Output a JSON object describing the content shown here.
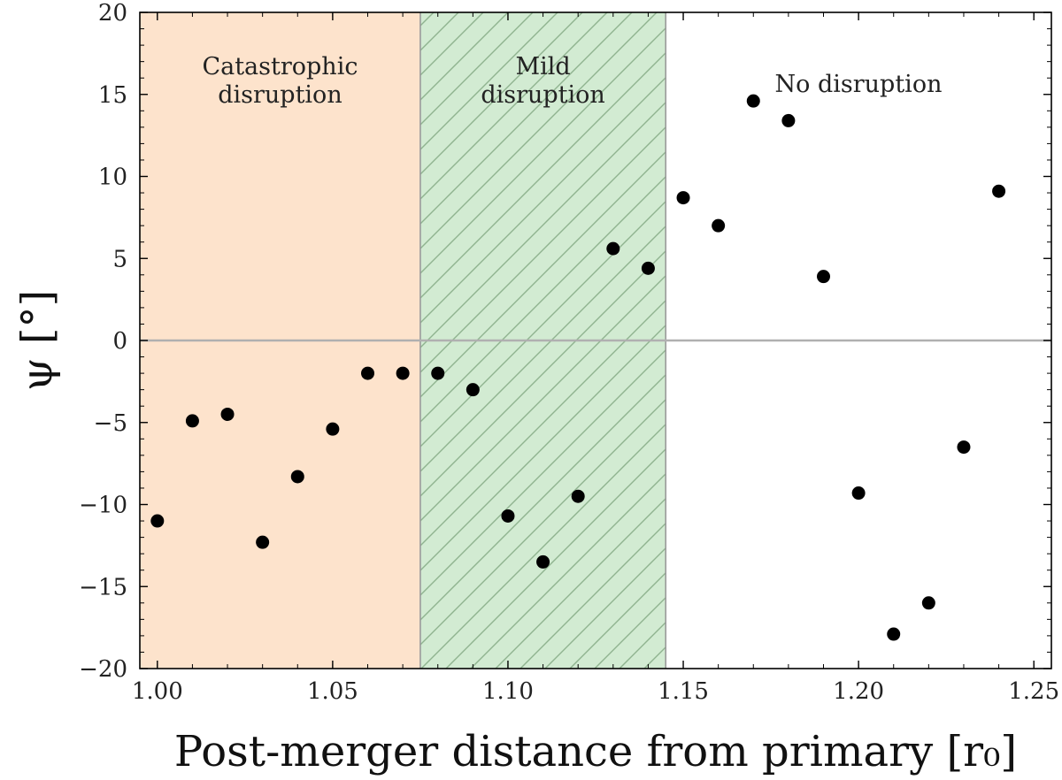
{
  "chart_data": {
    "type": "scatter",
    "title": "",
    "xlabel": "Post-merger distance from primary [r₀]",
    "ylabel": "ψ [°]",
    "xlim": [
      0.995,
      1.255
    ],
    "ylim": [
      -20,
      20
    ],
    "xticks": [
      1.0,
      1.05,
      1.1,
      1.15,
      1.2,
      1.25
    ],
    "xtick_labels": [
      "1.00",
      "1.05",
      "1.10",
      "1.15",
      "1.20",
      "1.25"
    ],
    "yticks": [
      -20,
      -15,
      -10,
      -5,
      0,
      5,
      10,
      15,
      20
    ],
    "ytick_labels": [
      "−20",
      "−15",
      "−10",
      "−5",
      "0",
      "5",
      "10",
      "15",
      "20"
    ],
    "grid": false,
    "reference_line": {
      "y": 0,
      "color": "#b0b0b0"
    },
    "regions": [
      {
        "label_lines": [
          "Catastrophic",
          "disruption"
        ],
        "x_start": 0.995,
        "x_end": 1.075,
        "color": "#fde3cc",
        "hatch": false
      },
      {
        "label_lines": [
          "Mild",
          "disruption"
        ],
        "x_start": 1.075,
        "x_end": 1.145,
        "color": "#d2ebd2",
        "hatch": true
      },
      {
        "label_lines": [
          "No disruption"
        ],
        "x_start": 1.145,
        "x_end": 1.255,
        "color": "#ffffff",
        "hatch": false
      }
    ],
    "marker_color": "#000000",
    "x": [
      1.0,
      1.01,
      1.02,
      1.03,
      1.04,
      1.05,
      1.06,
      1.07,
      1.08,
      1.09,
      1.1,
      1.11,
      1.12,
      1.13,
      1.14,
      1.15,
      1.16,
      1.17,
      1.18,
      1.19,
      1.2,
      1.21,
      1.22,
      1.23,
      1.24
    ],
    "y": [
      -11.0,
      -4.9,
      -4.5,
      -12.3,
      -8.3,
      -5.4,
      -2.0,
      -2.0,
      -2.0,
      -3.0,
      -10.7,
      -13.5,
      -9.5,
      5.6,
      4.4,
      8.7,
      7.0,
      14.6,
      13.4,
      3.9,
      -9.3,
      -17.9,
      -16.0,
      -6.5,
      9.1
    ]
  }
}
